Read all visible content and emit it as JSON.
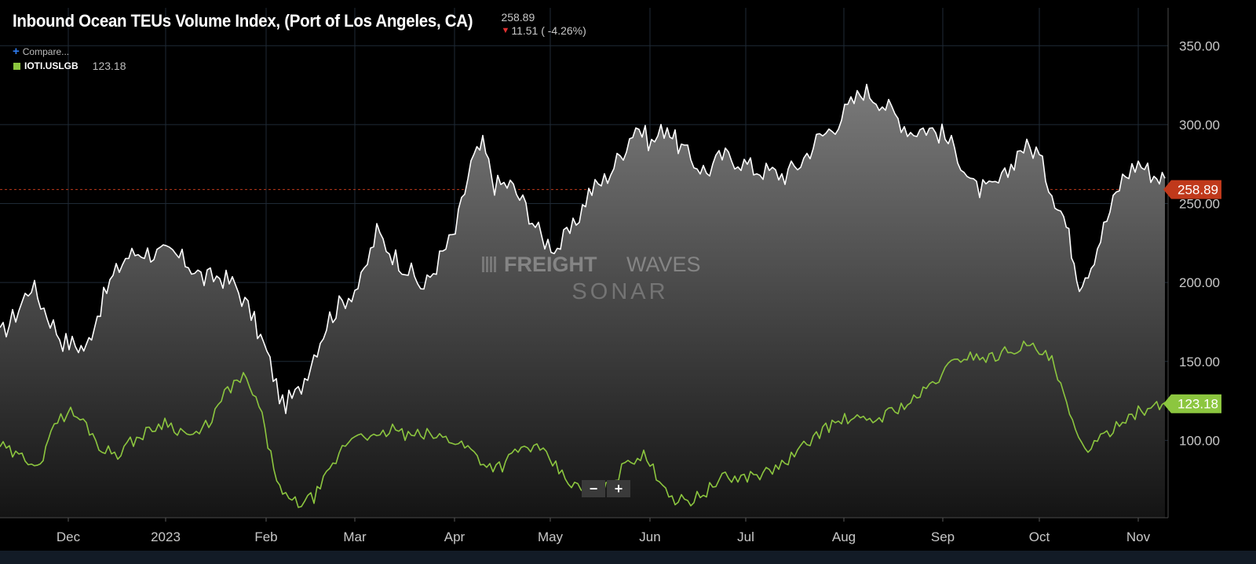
{
  "header": {
    "title": "Inbound Ocean TEUs Volume Index, (Port of Los Angeles, CA)",
    "last_value": "258.89",
    "change_text": "11.51 ( -4.26%)",
    "change_icon": "down-arrow-icon",
    "compare_label": "Compare..."
  },
  "legend": {
    "label": "IOTI.USLGB",
    "value": "123.18",
    "color": "#8cc63f"
  },
  "watermark": {
    "line1a": "FREIGHT",
    "line1b": "WAVES",
    "line2": "SONAR"
  },
  "zoom": {
    "minus": "−",
    "plus": "+"
  },
  "colors": {
    "background": "#000000",
    "primary_line": "#ffffff",
    "secondary_line": "#8cc63f",
    "last_value_badge": "#c0391b",
    "secondary_badge": "#8cc63f",
    "grid": "#1f2a36"
  },
  "chart_data": {
    "type": "area",
    "y_ticks": [
      100,
      150,
      200,
      250,
      300,
      350
    ],
    "y_tick_labels": [
      "100.00",
      "150.00",
      "200.00",
      "250.00",
      "300.00",
      "350.00"
    ],
    "ylim": [
      51,
      374
    ],
    "x_ticks": [
      "Dec",
      "2023",
      "Feb",
      "Mar",
      "Apr",
      "May",
      "Jun",
      "Jul",
      "Aug",
      "Sep",
      "Oct",
      "Nov"
    ],
    "last_value_line": 258.89,
    "last_value_label": "258.89",
    "secondary_last_label": "123.18",
    "grid": true,
    "series": [
      {
        "name": "Inbound Ocean TEUs Volume Index, (Port of Los Angeles, CA)",
        "style": "area",
        "points": [
          [
            0,
            166
          ],
          [
            20,
            180
          ],
          [
            40,
            199
          ],
          [
            60,
            180
          ],
          [
            80,
            163
          ],
          [
            100,
            160
          ],
          [
            110,
            158
          ],
          [
            120,
            175
          ],
          [
            140,
            200
          ],
          [
            160,
            216
          ],
          [
            180,
            220
          ],
          [
            200,
            218
          ],
          [
            220,
            218
          ],
          [
            240,
            212
          ],
          [
            260,
            202
          ],
          [
            280,
            204
          ],
          [
            300,
            198
          ],
          [
            320,
            180
          ],
          [
            340,
            155
          ],
          [
            360,
            122
          ],
          [
            380,
            130
          ],
          [
            400,
            155
          ],
          [
            420,
            178
          ],
          [
            440,
            190
          ],
          [
            460,
            200
          ],
          [
            480,
            232
          ],
          [
            500,
            218
          ],
          [
            520,
            208
          ],
          [
            540,
            196
          ],
          [
            560,
            215
          ],
          [
            580,
            232
          ],
          [
            600,
            275
          ],
          [
            615,
            287
          ],
          [
            630,
            262
          ],
          [
            650,
            262
          ],
          [
            670,
            248
          ],
          [
            690,
            228
          ],
          [
            710,
            222
          ],
          [
            730,
            234
          ],
          [
            750,
            257
          ],
          [
            770,
            265
          ],
          [
            790,
            280
          ],
          [
            810,
            300
          ],
          [
            830,
            288
          ],
          [
            850,
            300
          ],
          [
            860,
            290
          ],
          [
            880,
            278
          ],
          [
            900,
            270
          ],
          [
            920,
            280
          ],
          [
            940,
            278
          ],
          [
            960,
            272
          ],
          [
            980,
            270
          ],
          [
            1000,
            268
          ],
          [
            1020,
            276
          ],
          [
            1040,
            290
          ],
          [
            1060,
            298
          ],
          [
            1080,
            310
          ],
          [
            1100,
            322
          ],
          [
            1120,
            316
          ],
          [
            1140,
            306
          ],
          [
            1160,
            296
          ],
          [
            1180,
            298
          ],
          [
            1200,
            294
          ],
          [
            1220,
            282
          ],
          [
            1240,
            260
          ],
          [
            1260,
            258
          ],
          [
            1280,
            266
          ],
          [
            1300,
            286
          ],
          [
            1320,
            284
          ],
          [
            1340,
            258
          ],
          [
            1355,
            242
          ],
          [
            1365,
            222
          ],
          [
            1375,
            200
          ],
          [
            1390,
            212
          ],
          [
            1410,
            240
          ],
          [
            1430,
            266
          ],
          [
            1450,
            276
          ],
          [
            1470,
            268
          ],
          [
            1484,
            266
          ]
        ]
      },
      {
        "name": "IOTI.USLGB",
        "style": "line",
        "points": [
          [
            0,
            97
          ],
          [
            20,
            90
          ],
          [
            40,
            88
          ],
          [
            55,
            84
          ],
          [
            65,
            110
          ],
          [
            90,
            118
          ],
          [
            110,
            110
          ],
          [
            130,
            94
          ],
          [
            150,
            92
          ],
          [
            170,
            100
          ],
          [
            190,
            106
          ],
          [
            210,
            112
          ],
          [
            230,
            106
          ],
          [
            250,
            102
          ],
          [
            270,
            114
          ],
          [
            290,
            132
          ],
          [
            310,
            140
          ],
          [
            330,
            122
          ],
          [
            345,
            90
          ],
          [
            360,
            64
          ],
          [
            380,
            60
          ],
          [
            400,
            64
          ],
          [
            420,
            80
          ],
          [
            440,
            98
          ],
          [
            460,
            106
          ],
          [
            480,
            100
          ],
          [
            500,
            108
          ],
          [
            520,
            102
          ],
          [
            540,
            104
          ],
          [
            560,
            102
          ],
          [
            580,
            100
          ],
          [
            600,
            94
          ],
          [
            620,
            84
          ],
          [
            640,
            84
          ],
          [
            660,
            94
          ],
          [
            680,
            96
          ],
          [
            700,
            88
          ],
          [
            720,
            76
          ],
          [
            740,
            68
          ],
          [
            760,
            66
          ],
          [
            780,
            72
          ],
          [
            800,
            88
          ],
          [
            820,
            90
          ],
          [
            840,
            76
          ],
          [
            860,
            62
          ],
          [
            880,
            62
          ],
          [
            900,
            68
          ],
          [
            920,
            76
          ],
          [
            940,
            76
          ],
          [
            960,
            78
          ],
          [
            980,
            80
          ],
          [
            1000,
            86
          ],
          [
            1020,
            94
          ],
          [
            1040,
            104
          ],
          [
            1060,
            110
          ],
          [
            1080,
            114
          ],
          [
            1100,
            112
          ],
          [
            1120,
            114
          ],
          [
            1140,
            120
          ],
          [
            1160,
            124
          ],
          [
            1180,
            132
          ],
          [
            1200,
            142
          ],
          [
            1220,
            152
          ],
          [
            1240,
            154
          ],
          [
            1260,
            152
          ],
          [
            1280,
            156
          ],
          [
            1300,
            160
          ],
          [
            1320,
            158
          ],
          [
            1340,
            150
          ],
          [
            1355,
            128
          ],
          [
            1370,
            104
          ],
          [
            1390,
            94
          ],
          [
            1410,
            104
          ],
          [
            1430,
            114
          ],
          [
            1450,
            118
          ],
          [
            1470,
            120
          ],
          [
            1484,
            124
          ]
        ]
      }
    ]
  }
}
